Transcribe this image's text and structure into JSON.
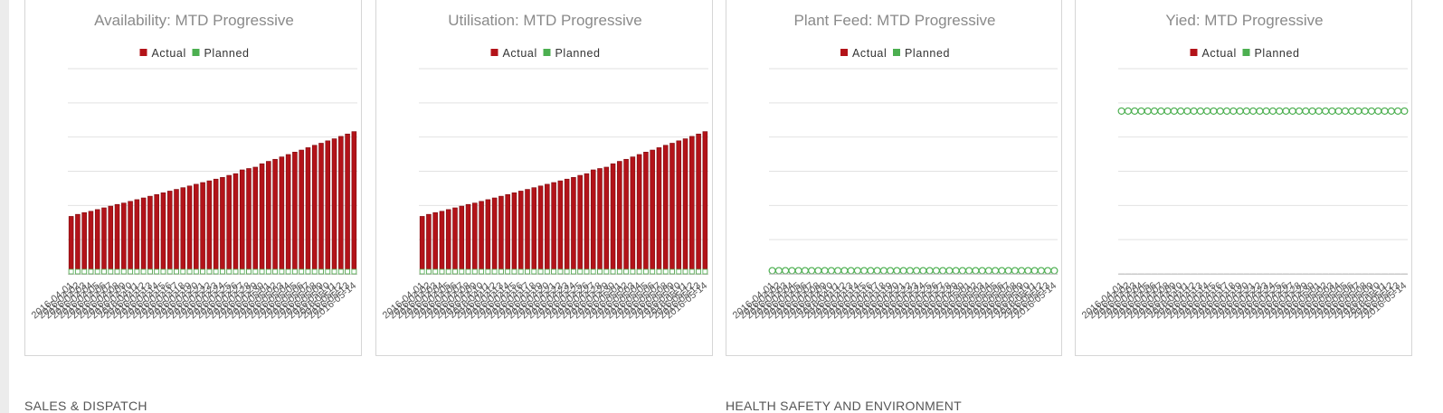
{
  "colors": {
    "actual": "#b31319",
    "actual_dark": "#7d0b10",
    "planned": "#4caf50",
    "grid": "#e2e2e2"
  },
  "dates": [
    "2016-04-01",
    "2016-04-02",
    "2016-04-03",
    "2016-04-04",
    "2016-04-05",
    "2016-04-06",
    "2016-04-07",
    "2016-04-08",
    "2016-04-09",
    "2016-04-10",
    "2016-04-11",
    "2016-04-12",
    "2016-04-13",
    "2016-04-14",
    "2016-04-15",
    "2016-04-16",
    "2016-04-17",
    "2016-04-18",
    "2016-04-19",
    "2016-04-20",
    "2016-04-21",
    "2016-04-22",
    "2016-04-23",
    "2016-04-24",
    "2016-04-25",
    "2016-04-26",
    "2016-04-27",
    "2016-04-28",
    "2016-04-29",
    "2016-04-30",
    "2016-05-01",
    "2016-05-02",
    "2016-05-03",
    "2016-05-04",
    "2016-05-05",
    "2016-05-06",
    "2016-05-07",
    "2016-05-08",
    "2016-05-09",
    "2016-05-10",
    "2016-05-11",
    "2016-05-12",
    "2016-05-13",
    "2016-05-14"
  ],
  "chart_data": [
    {
      "type": "bar",
      "title": "Availability: MTD Progressive",
      "legend": {
        "placement": "top-center",
        "entries": [
          "Actual",
          "Planned"
        ]
      },
      "xlabel": "",
      "ylabel": "",
      "ylim": [
        0,
        6
      ],
      "grid": true,
      "gridlines": 6,
      "series": [
        {
          "name": "Actual",
          "values": [
            1.68,
            1.74,
            1.79,
            1.83,
            1.88,
            1.93,
            1.98,
            2.03,
            2.07,
            2.12,
            2.17,
            2.22,
            2.27,
            2.32,
            2.37,
            2.42,
            2.47,
            2.52,
            2.57,
            2.62,
            2.67,
            2.72,
            2.77,
            2.82,
            2.88,
            2.93,
            3.04,
            3.08,
            3.12,
            3.22,
            3.29,
            3.35,
            3.42,
            3.49,
            3.56,
            3.62,
            3.69,
            3.76,
            3.82,
            3.89,
            3.95,
            4.02,
            4.09,
            4.16
          ]
        },
        {
          "name": "Planned",
          "values": [
            0,
            0,
            0,
            0,
            0,
            0,
            0,
            0,
            0,
            0,
            0,
            0,
            0,
            0,
            0,
            0,
            0,
            0,
            0,
            0,
            0,
            0,
            0,
            0,
            0,
            0,
            0,
            0,
            0,
            0,
            0,
            0,
            0,
            0,
            0,
            0,
            0,
            0,
            0,
            0,
            0,
            0,
            0,
            0
          ]
        }
      ]
    },
    {
      "type": "bar",
      "title": "Utilisation: MTD Progressive",
      "legend": {
        "placement": "top-center",
        "entries": [
          "Actual",
          "Planned"
        ]
      },
      "xlabel": "",
      "ylabel": "",
      "ylim": [
        0,
        6
      ],
      "grid": true,
      "gridlines": 6,
      "series": [
        {
          "name": "Actual",
          "values": [
            1.68,
            1.74,
            1.79,
            1.83,
            1.88,
            1.93,
            1.98,
            2.03,
            2.07,
            2.12,
            2.17,
            2.22,
            2.27,
            2.32,
            2.37,
            2.42,
            2.47,
            2.52,
            2.57,
            2.62,
            2.67,
            2.72,
            2.77,
            2.82,
            2.88,
            2.93,
            3.04,
            3.08,
            3.12,
            3.22,
            3.29,
            3.35,
            3.42,
            3.49,
            3.56,
            3.62,
            3.69,
            3.76,
            3.82,
            3.89,
            3.95,
            4.02,
            4.09,
            4.16
          ]
        },
        {
          "name": "Planned",
          "values": [
            0,
            0,
            0,
            0,
            0,
            0,
            0,
            0,
            0,
            0,
            0,
            0,
            0,
            0,
            0,
            0,
            0,
            0,
            0,
            0,
            0,
            0,
            0,
            0,
            0,
            0,
            0,
            0,
            0,
            0,
            0,
            0,
            0,
            0,
            0,
            0,
            0,
            0,
            0,
            0,
            0,
            0,
            0,
            0
          ]
        }
      ]
    },
    {
      "type": "line",
      "title": "Plant Feed: MTD Progressive",
      "legend": {
        "placement": "top-center",
        "entries": [
          "Actual",
          "Planned"
        ]
      },
      "xlabel": "",
      "ylabel": "",
      "ylim": [
        0,
        6
      ],
      "grid": true,
      "gridlines": 6,
      "series": [
        {
          "name": "Actual",
          "values": [
            0,
            0,
            0,
            0,
            0,
            0,
            0,
            0,
            0,
            0,
            0,
            0,
            0,
            0,
            0,
            0,
            0,
            0,
            0,
            0,
            0,
            0,
            0,
            0,
            0,
            0,
            0,
            0,
            0,
            0,
            0,
            0,
            0,
            0,
            0,
            0,
            0,
            0,
            0,
            0,
            0,
            0,
            0,
            0
          ]
        },
        {
          "name": "Planned",
          "values": [
            0,
            0,
            0,
            0,
            0,
            0,
            0,
            0,
            0,
            0,
            0,
            0,
            0,
            0,
            0,
            0,
            0,
            0,
            0,
            0,
            0,
            0,
            0,
            0,
            0,
            0,
            0,
            0,
            0,
            0,
            0,
            0,
            0,
            0,
            0,
            0,
            0,
            0,
            0,
            0,
            0,
            0,
            0,
            0
          ]
        }
      ]
    },
    {
      "type": "line",
      "title": "Yied: MTD Progressive",
      "legend": {
        "placement": "top-center",
        "entries": [
          "Actual",
          "Planned"
        ]
      },
      "xlabel": "",
      "ylabel": "",
      "ylim": [
        0,
        6
      ],
      "grid": true,
      "gridlines": 6,
      "series": [
        {
          "name": "Actual",
          "values": [
            0,
            0,
            0,
            0,
            0,
            0,
            0,
            0,
            0,
            0,
            0,
            0,
            0,
            0,
            0,
            0,
            0,
            0,
            0,
            0,
            0,
            0,
            0,
            0,
            0,
            0,
            0,
            0,
            0,
            0,
            0,
            0,
            0,
            0,
            0,
            0,
            0,
            0,
            0,
            0,
            0,
            0,
            0,
            0
          ]
        },
        {
          "name": "Planned",
          "values": [
            4.76,
            4.76,
            4.76,
            4.76,
            4.76,
            4.76,
            4.76,
            4.76,
            4.76,
            4.76,
            4.76,
            4.76,
            4.76,
            4.76,
            4.76,
            4.76,
            4.76,
            4.76,
            4.76,
            4.76,
            4.76,
            4.76,
            4.76,
            4.76,
            4.76,
            4.76,
            4.76,
            4.76,
            4.76,
            4.76,
            4.76,
            4.76,
            4.76,
            4.76,
            4.76,
            4.76,
            4.76,
            4.76,
            4.76,
            4.76,
            4.76,
            4.76,
            4.76,
            4.76
          ]
        }
      ]
    }
  ],
  "sections": {
    "left_title": "SALES & DISPATCH",
    "right_title": "HEALTH SAFETY AND ENVIRONMENT"
  }
}
